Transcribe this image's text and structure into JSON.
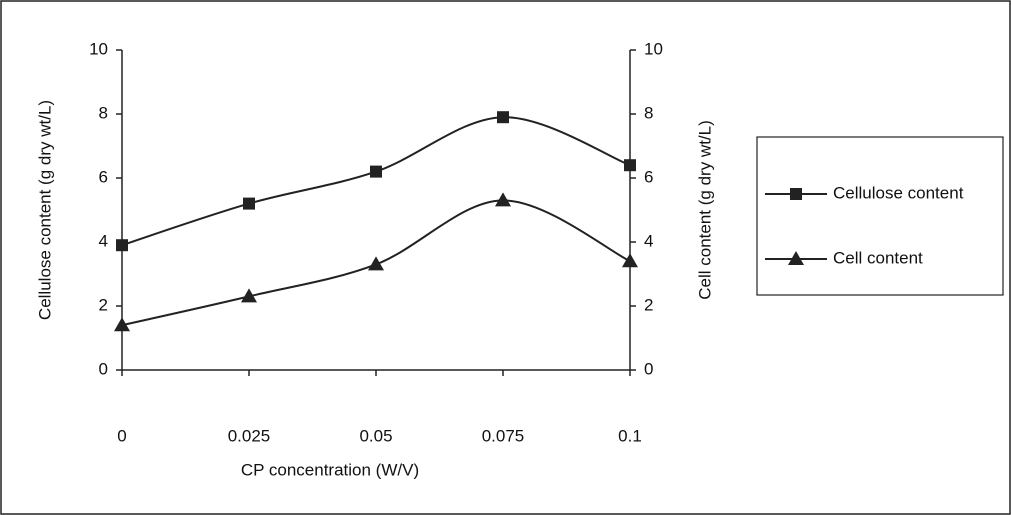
{
  "chart_data": {
    "type": "line",
    "x_label": "CP concentration (W/V)",
    "y_label": "Cellulose content (g dry wt/L)",
    "y2_label": "Cell content (g dry wt/L)",
    "x": [
      0,
      0.025,
      0.05,
      0.075,
      0.1
    ],
    "xlim": [
      0,
      0.1
    ],
    "xticks": [
      0,
      0.025,
      0.05,
      0.075,
      0.1
    ],
    "ylim": [
      0,
      10
    ],
    "yticks": [
      0,
      2,
      4,
      6,
      8,
      10
    ],
    "y2lim": [
      0,
      10
    ],
    "y2ticks": [
      0,
      2,
      4,
      6,
      8,
      10
    ],
    "series": [
      {
        "name": "Cellulose content",
        "color": "#222222",
        "marker": "square",
        "values": [
          3.9,
          5.2,
          6.2,
          7.9,
          6.4
        ]
      },
      {
        "name": "Cell content",
        "color": "#222222",
        "marker": "triangle",
        "axis": "y2",
        "values": [
          1.4,
          2.3,
          3.3,
          5.3,
          3.4
        ]
      }
    ],
    "legend": "right"
  }
}
